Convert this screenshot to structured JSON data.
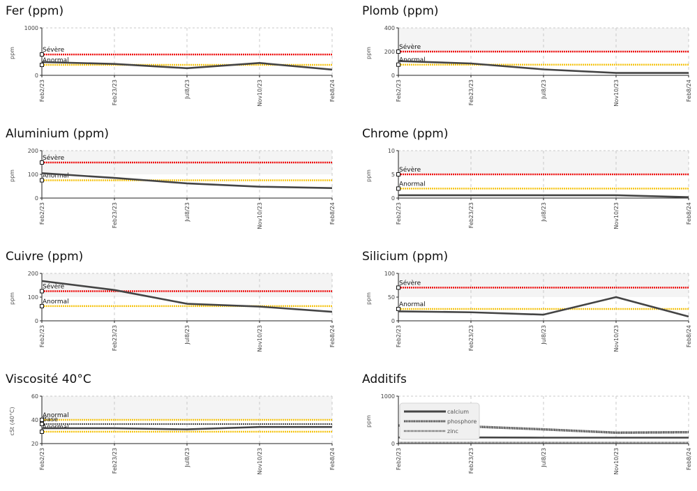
{
  "colors": {
    "severe": "#ee1111",
    "abnormal": "#f5c518",
    "series": "#444444",
    "grid": "#c8c8c8",
    "band": "#f4f4f4"
  },
  "chart_data": [
    {
      "type": "line",
      "title": "Fer (ppm)",
      "ylabel": "ppm",
      "ylim": [
        0,
        1000
      ],
      "yticks": [
        0,
        1000
      ],
      "x": [
        "Feb2/23",
        "Feb23/23",
        "Jul8/23",
        "Nov10/23",
        "Feb8/24"
      ],
      "series": [
        {
          "values": [
            280,
            240,
            150,
            260,
            120
          ]
        }
      ],
      "thresholds": [
        {
          "label": "Sévère",
          "value": 440,
          "kind": "severe"
        },
        {
          "label": "Anormal",
          "value": 220,
          "kind": "abnormal"
        }
      ],
      "band": false
    },
    {
      "type": "line",
      "title": "Plomb (ppm)",
      "ylabel": "ppm",
      "ylim": [
        0,
        400
      ],
      "yticks": [
        0,
        200,
        400
      ],
      "x": [
        "Feb2/23",
        "Feb23/23",
        "Jul8/23",
        "Nov10/23",
        "Feb8/24"
      ],
      "series": [
        {
          "values": [
            120,
            100,
            50,
            20,
            20
          ]
        }
      ],
      "thresholds": [
        {
          "label": "Sévère",
          "value": 200,
          "kind": "severe"
        },
        {
          "label": "Anormal",
          "value": 90,
          "kind": "abnormal"
        }
      ],
      "band": true
    },
    {
      "type": "line",
      "title": "Aluminium (ppm)",
      "ylabel": "ppm",
      "ylim": [
        0,
        200
      ],
      "yticks": [
        0,
        100,
        200
      ],
      "x": [
        "Feb2/23",
        "Feb23/23",
        "Jul8/23",
        "Nov10/23",
        "Feb8/24"
      ],
      "series": [
        {
          "values": [
            105,
            85,
            62,
            48,
            42
          ]
        }
      ],
      "thresholds": [
        {
          "label": "Sévère",
          "value": 150,
          "kind": "severe"
        },
        {
          "label": "Anormal",
          "value": 75,
          "kind": "abnormal"
        }
      ],
      "band": true
    },
    {
      "type": "line",
      "title": "Chrome (ppm)",
      "ylabel": "ppm",
      "ylim": [
        0,
        10
      ],
      "yticks": [
        0,
        5,
        10
      ],
      "x": [
        "Feb2/23",
        "Feb23/23",
        "Jul8/23",
        "Nov10/23",
        "Feb8/24"
      ],
      "series": [
        {
          "values": [
            0.6,
            0.6,
            0.6,
            0.6,
            0.2
          ]
        }
      ],
      "thresholds": [
        {
          "label": "Sévère",
          "value": 5,
          "kind": "severe"
        },
        {
          "label": "Anormal",
          "value": 2,
          "kind": "abnormal"
        }
      ],
      "band": true
    },
    {
      "type": "line",
      "title": "Cuivre (ppm)",
      "ylabel": "ppm",
      "ylim": [
        0,
        200
      ],
      "yticks": [
        0,
        100,
        200
      ],
      "x": [
        "Feb2/23",
        "Feb23/23",
        "Jul8/23",
        "Nov10/23",
        "Feb8/24"
      ],
      "series": [
        {
          "values": [
            168,
            130,
            72,
            60,
            38
          ]
        }
      ],
      "thresholds": [
        {
          "label": "Sévère",
          "value": 125,
          "kind": "severe"
        },
        {
          "label": "Anormal",
          "value": 62,
          "kind": "abnormal"
        }
      ],
      "band": true
    },
    {
      "type": "line",
      "title": "Silicium (ppm)",
      "ylabel": "ppm",
      "ylim": [
        0,
        100
      ],
      "yticks": [
        0,
        50,
        100
      ],
      "x": [
        "Feb2/23",
        "Feb23/23",
        "Jul8/23",
        "Nov10/23",
        "Feb8/24"
      ],
      "series": [
        {
          "values": [
            20,
            18,
            13,
            50,
            9
          ]
        }
      ],
      "thresholds": [
        {
          "label": "Sévère",
          "value": 70,
          "kind": "severe"
        },
        {
          "label": "Anormal",
          "value": 25,
          "kind": "abnormal"
        }
      ],
      "band": true
    },
    {
      "type": "line",
      "title": "Viscosité 40°C",
      "ylabel": "cSt (40°C)",
      "ylim": [
        20,
        60
      ],
      "yticks": [
        20,
        40,
        60
      ],
      "x": [
        "Feb2/23",
        "Feb23/23",
        "Jul8/23",
        "Nov10/23",
        "Feb8/24"
      ],
      "series": [
        {
          "values": [
            33,
            33,
            32,
            34,
            34
          ]
        }
      ],
      "thresholds": [
        {
          "label": "Anormal",
          "value": 40,
          "kind": "abnormal"
        },
        {
          "label": "Base",
          "value": 36.5,
          "kind": "base"
        },
        {
          "label": "Anormal",
          "value": 30,
          "kind": "abnormal"
        }
      ],
      "band": true
    },
    {
      "type": "line",
      "title": "Additifs",
      "ylabel": "ppm",
      "ylim": [
        0,
        1000
      ],
      "yticks": [
        0,
        1000
      ],
      "x": [
        "Feb2/23",
        "Feb23/23",
        "Jul8/23",
        "Nov10/23",
        "Feb8/24"
      ],
      "series": [
        {
          "name": "calcium",
          "values": [
            130,
            130,
            125,
            125,
            125
          ],
          "style": "solid"
        },
        {
          "name": "phosphore",
          "values": [
            380,
            360,
            300,
            230,
            240
          ],
          "style": "dense"
        },
        {
          "name": "zinc",
          "values": [
            20,
            20,
            20,
            20,
            20
          ],
          "style": "zig"
        }
      ],
      "thresholds": [],
      "band": false
    }
  ]
}
